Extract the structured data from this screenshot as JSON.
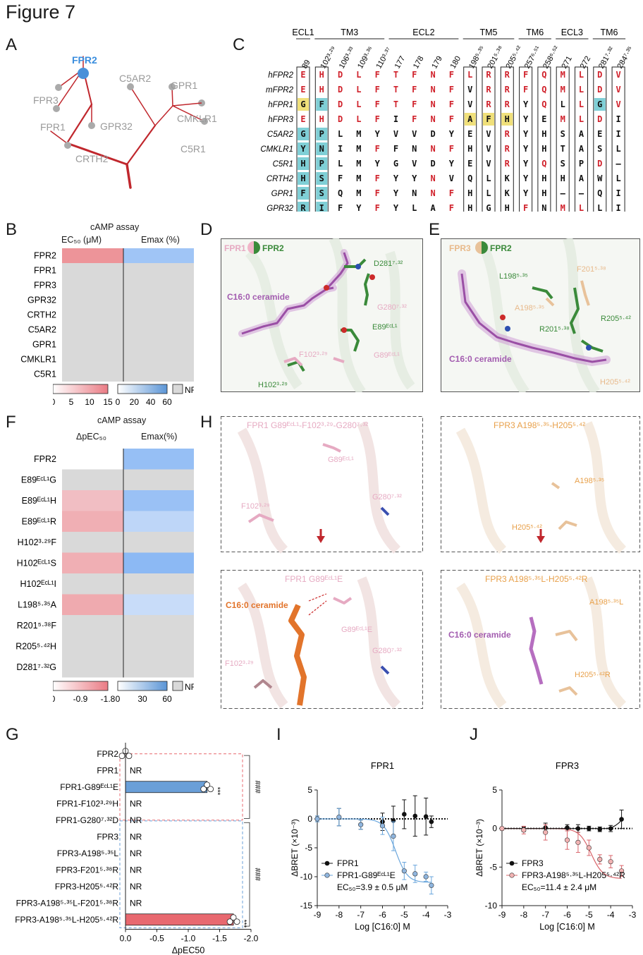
{
  "figure_title": "Figure 7",
  "panel_labels": [
    "A",
    "B",
    "C",
    "D",
    "E",
    "F",
    "G",
    "H",
    "I",
    "J"
  ],
  "panelA": {
    "highlight": "FPR2",
    "leaves": [
      "FPR3",
      "FPR1",
      "GPR32",
      "CRTH2",
      "C5AR2",
      "GPR1",
      "CMKLR1",
      "C5R1"
    ],
    "colors": {
      "tree": "#c0272d",
      "highlight": "#3b8ede",
      "leaf": "#999999"
    }
  },
  "panelB": {
    "title": "cAMP   assay",
    "col1": "EC₅₀ (μM)",
    "col2": "Emax (%)",
    "rows": [
      "FPR2",
      "FPR1",
      "FPR3",
      "GPR32",
      "CRTH2",
      "C5AR2",
      "GPR1",
      "CMKLR1",
      "C5R1"
    ],
    "ec50_values": [
      12,
      null,
      null,
      null,
      null,
      null,
      null,
      null,
      null
    ],
    "emax_values": [
      35,
      null,
      null,
      null,
      null,
      null,
      null,
      null,
      null
    ],
    "legend_red": [
      "0",
      "5",
      "10",
      "15"
    ],
    "legend_blue": [
      "0",
      "20",
      "40",
      "60"
    ],
    "nr": "NR"
  },
  "panelC": {
    "groups": [
      "ECL1",
      "TM3",
      "ECL2",
      "TM5",
      "TM6",
      "ECL3",
      "TM6"
    ],
    "positions": [
      "89",
      "102³·²⁹",
      "106³·³³",
      "109³·³⁶",
      "110³·³⁷",
      "177",
      "178",
      "179",
      "180",
      "198⁵·³⁵",
      "201⁵·³⁸",
      "205⁵·⁴²",
      "257⁶·⁵¹",
      "258⁶·⁵²",
      "271",
      "272",
      "281⁷·³²",
      "284⁷·³⁵"
    ],
    "rows": [
      {
        "name": "hFPR2",
        "seq": [
          "E",
          "H",
          "D",
          "L",
          "F",
          "T",
          "F",
          "N",
          "F",
          "L",
          "R",
          "R",
          "F",
          "Q",
          "M",
          "L",
          "D",
          "V"
        ]
      },
      {
        "name": "mFPR2",
        "seq": [
          "E",
          "H",
          "D",
          "L",
          "F",
          "T",
          "F",
          "N",
          "F",
          "V",
          "R",
          "R",
          "F",
          "Q",
          "M",
          "L",
          "D",
          "V"
        ]
      },
      {
        "name": "hFPR1",
        "seq": [
          "G",
          "F",
          "D",
          "L",
          "F",
          "T",
          "F",
          "N",
          "F",
          "V",
          "R",
          "R",
          "Y",
          "Q",
          "L",
          "L",
          "G",
          "V"
        ]
      },
      {
        "name": "hFPR3",
        "seq": [
          "E",
          "H",
          "D",
          "L",
          "F",
          "I",
          "F",
          "N",
          "F",
          "A",
          "F",
          "H",
          "Y",
          "E",
          "M",
          "L",
          "D",
          "I"
        ]
      },
      {
        "name": "C5AR2",
        "seq": [
          "G",
          "P",
          "L",
          "M",
          "Y",
          "V",
          "V",
          "D",
          "Y",
          "E",
          "V",
          "R",
          "Y",
          "H",
          "S",
          "A",
          "E",
          "I"
        ]
      },
      {
        "name": "CMKLR1",
        "seq": [
          "Y",
          "N",
          "I",
          "M",
          "F",
          "F",
          "N",
          "N",
          "F",
          "H",
          "V",
          "R",
          "Y",
          "H",
          "T",
          "A",
          "S",
          "L"
        ]
      },
      {
        "name": "C5R1",
        "seq": [
          "H",
          "P",
          "L",
          "M",
          "Y",
          "G",
          "V",
          "D",
          "Y",
          "E",
          "V",
          "R",
          "Y",
          "Q",
          "S",
          "P",
          "D",
          "–"
        ]
      },
      {
        "name": "CRTH2",
        "seq": [
          "H",
          "S",
          "F",
          "M",
          "F",
          "Y",
          "Y",
          "N",
          "V",
          "Q",
          "L",
          "K",
          "Y",
          "H",
          "H",
          "A",
          "W",
          "L"
        ]
      },
      {
        "name": "GPR1",
        "seq": [
          "F",
          "S",
          "Q",
          "M",
          "F",
          "Y",
          "N",
          "N",
          "F",
          "H",
          "L",
          "K",
          "Y",
          "H",
          "–",
          "–",
          "Q",
          "I"
        ]
      },
      {
        "name": "GPR32",
        "seq": [
          "R",
          "I",
          "F",
          "Y",
          "F",
          "Y",
          "L",
          "A",
          "F",
          "H",
          "G",
          "H",
          "F",
          "N",
          "M",
          "L",
          "L",
          "I"
        ]
      }
    ]
  },
  "panelD": {
    "legend_a": "FPR1",
    "legend_b": "FPR2",
    "ligand": "C16:0 ceramide",
    "labels": [
      "D281⁷·³²",
      "G280⁷·³²",
      "E89ᴱᶜᴸ¹",
      "G89ᴱᶜᴸ¹",
      "F102³·²⁹",
      "H102³·²⁹"
    ]
  },
  "panelE": {
    "legend_a": "FPR3",
    "legend_b": "FPR2",
    "ligand": "C16:0 ceramide",
    "labels": [
      "L198⁵·³⁵",
      "F201⁵·³⁸",
      "A198⁵·³⁵",
      "R201⁵·³⁸",
      "R205⁵·⁴²",
      "H205⁵·⁴²"
    ]
  },
  "panelF": {
    "title": "cAMP   assay",
    "col1": "ΔpEC₅₀",
    "col2": "Emax(%)",
    "rows": [
      "FPR2",
      "E89ᴱᶜᴸ¹G",
      "E89ᴱᶜᴸ¹H",
      "E89ᴱᶜᴸ¹R",
      "H102³·²⁹F",
      "H102ᴱᶜᴸ¹S",
      "H102ᴱᶜᴸ¹I",
      "L198⁵·³⁵A",
      "R201⁵·³⁸F",
      "R205⁵·⁴²H",
      "D281⁷·³²G"
    ],
    "dpec50_values": [
      0,
      null,
      -0.6,
      -0.9,
      null,
      -0.9,
      null,
      -1.0,
      null,
      null,
      null
    ],
    "emax_values": [
      40,
      null,
      38,
      20,
      null,
      45,
      null,
      15,
      null,
      null,
      null
    ],
    "legend_red": [
      "0",
      "-0.9",
      "-1.8"
    ],
    "legend_blue": [
      "0",
      "30",
      "60"
    ],
    "nr": "NR"
  },
  "panelH": {
    "top_left_title": "FPR1 G89ᴱᶜᴸ¹-F102³·²⁹-G280⁷·³²",
    "top_left_labels": [
      "G89ᴱᶜᴸ¹",
      "G280⁷·³²",
      "F102³·²⁹"
    ],
    "top_right_title": "FPR3 A198⁵·³⁵-H205⁵·⁴²",
    "top_right_labels": [
      "A198⁵·³⁵",
      "H205⁵·⁴²"
    ],
    "bottom_left_title": "FPR1 G89ᴱᶜᴸ¹E",
    "bottom_left_labels": [
      "C16:0 ceramide",
      "G89ᴱᶜᴸ¹E",
      "G280⁷·³²",
      "F102³·²⁹"
    ],
    "bottom_right_title": "FPR3 A198⁵·³⁵L-H205⁵·⁴²R",
    "bottom_right_labels": [
      "A198⁵·³⁵L",
      "C16:0 ceramide",
      "H205⁵·⁴²R"
    ]
  },
  "chart_data": [
    {
      "panel": "G",
      "type": "bar",
      "orientation": "horizontal",
      "categories": [
        "FPR2",
        "FPR1",
        "FPR1-G89ᴱᶜᴸ¹E",
        "FPR1-F102³·²⁹H",
        "FPR1-G280⁷·³²D",
        "FPR3",
        "FPR3-A198⁵·³⁵L",
        "FPR3-F201⁵·³⁸R",
        "FPR3-H205⁵·⁴²R",
        "FPR3-A198⁵·³⁵L-F201⁵·³⁸R",
        "FPR3-A198⁵·³⁵L-H205⁵·⁴²R"
      ],
      "values": [
        0,
        null,
        -1.3,
        null,
        null,
        null,
        null,
        null,
        null,
        null,
        -1.72
      ],
      "value_text": [
        "",
        "NR",
        "",
        "NR",
        "NR",
        "NR",
        "NR",
        "NR",
        "NR",
        "NR",
        ""
      ],
      "significance": [
        "",
        "",
        "***",
        "",
        "",
        "",
        "",
        "",
        "",
        "",
        "***"
      ],
      "group_marks": [
        "###",
        "###"
      ],
      "xlabel": "ΔpEC50",
      "xticks": [
        "0.0",
        "-0.5",
        "-1.0",
        "-1.5",
        "-2.0"
      ],
      "xlim": [
        0,
        -2.0
      ],
      "colors": {
        "blue": "#6a9fd8",
        "red": "#e8686f"
      }
    },
    {
      "panel": "I",
      "type": "line",
      "title": "FPR1",
      "xlabel": "Log [C16:0] M",
      "ylabel": "ΔBRET (×10⁻³)",
      "xlim": [
        -9,
        -3
      ],
      "ylim": [
        -15,
        5
      ],
      "xticks": [
        "-9",
        "-8",
        "-7",
        "-6",
        "-5",
        "-4",
        "-3"
      ],
      "yticks": [
        "5",
        "0",
        "-5",
        "-10",
        "-15"
      ],
      "series": [
        {
          "name": "FPR1",
          "x": [
            -9,
            -8,
            -7,
            -6,
            -5.5,
            -5,
            -4.5,
            -4,
            -3.75
          ],
          "y": [
            0,
            0.3,
            -1,
            -0.5,
            -0.3,
            0.8,
            0.5,
            0.4,
            -0.5
          ],
          "err": [
            0.5,
            1.5,
            0.8,
            1.5,
            2.5,
            2.5,
            3.5,
            3.2,
            1
          ]
        },
        {
          "name": "FPR1-G89ᴱᶜᴸ¹E",
          "x": [
            -9,
            -8,
            -7,
            -6,
            -5.5,
            -5,
            -4.5,
            -4,
            -3.75
          ],
          "y": [
            0,
            0.3,
            -1,
            -1.2,
            -3,
            -9,
            -9.5,
            -10,
            -11.5
          ],
          "err": [
            0.5,
            1.5,
            0.8,
            1.5,
            2.5,
            1.5,
            1.5,
            0.8,
            1.5
          ]
        }
      ],
      "annotation": "EC₅₀=3.9 ± 0.5 μM"
    },
    {
      "panel": "J",
      "type": "line",
      "title": "FPR3",
      "xlabel": "Log [C16:0] M",
      "ylabel": "ΔBRET (×10⁻³)",
      "xlim": [
        -9,
        -3
      ],
      "ylim": [
        -10,
        5
      ],
      "xticks": [
        "-9",
        "-8",
        "-7",
        "-6",
        "-5",
        "-4",
        "-3"
      ],
      "yticks": [
        "5",
        "0",
        "-5",
        "-10"
      ],
      "series": [
        {
          "name": "FPR3",
          "x": [
            -9,
            -8,
            -7,
            -6,
            -5.5,
            -5,
            -4.5,
            -4,
            -3.5
          ],
          "y": [
            0,
            -0.1,
            0.1,
            0.1,
            0,
            0,
            -0.1,
            0,
            1.2
          ],
          "err": [
            0.2,
            0.3,
            0.6,
            0.4,
            0.5,
            0.3,
            0.3,
            0.4,
            1.2
          ]
        },
        {
          "name": "FPR3-A198⁵·³⁵L-H205⁵·⁴²R",
          "x": [
            -9,
            -8,
            -7,
            -6,
            -5.5,
            -5,
            -4.5,
            -4,
            -3.5
          ],
          "y": [
            0,
            -0.2,
            -0.5,
            -1.5,
            -1.8,
            -2.5,
            -4,
            -4.3,
            -5.5
          ],
          "err": [
            0.2,
            0.5,
            1,
            1.2,
            1.3,
            1.0,
            0.6,
            0.8,
            0.7
          ]
        }
      ],
      "annotation": "EC₅₀=11.4 ± 2.4 μM"
    }
  ]
}
